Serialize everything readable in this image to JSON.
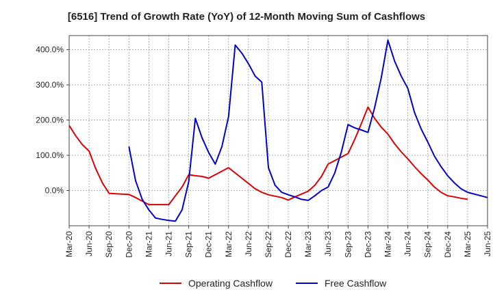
{
  "chart_data": {
    "type": "line",
    "title": "[6516]  Trend of Growth Rate (YoY) of 12-Month Moving Sum of Cashflows",
    "xlabel": "",
    "ylabel": "",
    "x_ticks": [
      "Mar-20",
      "Jun-20",
      "Sep-20",
      "Dec-20",
      "Mar-21",
      "Jun-21",
      "Sep-21",
      "Dec-21",
      "Mar-22",
      "Jun-22",
      "Sep-22",
      "Dec-22",
      "Mar-23",
      "Jun-23",
      "Sep-23",
      "Dec-23",
      "Mar-24",
      "Jun-24",
      "Sep-24",
      "Dec-24",
      "Mar-25",
      "Jun-25"
    ],
    "y_ticks": [
      0,
      100,
      200,
      300,
      400
    ],
    "y_tick_labels": [
      "0.0%",
      "100.0%",
      "200.0%",
      "300.0%",
      "400.0%"
    ],
    "ylim": [
      -100,
      440
    ],
    "grid": true,
    "legend_position": "bottom",
    "series": [
      {
        "name": "Operating Cashflow",
        "color": "#dd0000",
        "values": [
          185,
          155,
          130,
          112,
          62,
          22,
          -8,
          -9,
          -10,
          -11,
          -20,
          -30,
          -40,
          -40,
          -40,
          -40,
          -15,
          10,
          45,
          42,
          40,
          35,
          45,
          55,
          65,
          50,
          35,
          20,
          5,
          -5,
          -12,
          -16,
          -20,
          -27,
          -18,
          -10,
          -2,
          15,
          40,
          75,
          85,
          95,
          105,
          145,
          190,
          237,
          205,
          180,
          160,
          133,
          110,
          90,
          68,
          48,
          30,
          10,
          -5,
          -15,
          -18,
          -22,
          -25
        ],
        "start_index": 0
      },
      {
        "name": "Free Cashflow",
        "color": "#0000cc",
        "values": [
          125,
          28,
          -25,
          -55,
          -78,
          -82,
          -85,
          -87,
          -55,
          25,
          205,
          150,
          108,
          75,
          125,
          210,
          413,
          390,
          360,
          325,
          308,
          65,
          15,
          -5,
          -12,
          -18,
          -25,
          -28,
          -15,
          0,
          10,
          50,
          110,
          187,
          178,
          172,
          165,
          235,
          320,
          427,
          368,
          325,
          290,
          222,
          175,
          138,
          98,
          68,
          42,
          22,
          5,
          -5,
          -10,
          -15,
          -20
        ],
        "start_index": 9
      }
    ]
  }
}
